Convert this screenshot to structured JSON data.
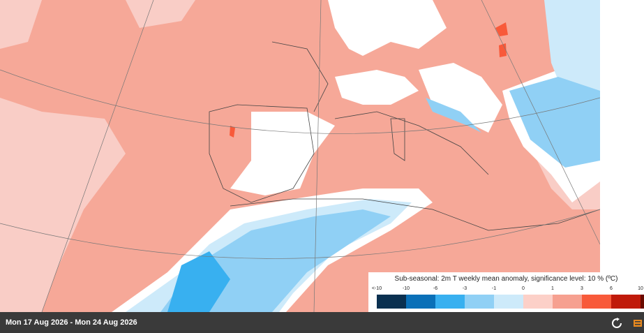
{
  "legend": {
    "title": "Sub-seasonal: 2m T weekly mean anomaly, significance level: 10 % (ºC)",
    "ticks": [
      "<-10",
      "-10",
      "-6",
      "-3",
      "-1",
      "0",
      "1",
      "3",
      "6",
      "10"
    ],
    "colors": [
      "#0a3050",
      "#0a70b8",
      "#38b0f0",
      "#90d0f5",
      "#cdeafa",
      "#fcd0c8",
      "#f6a090",
      "#f85a3a",
      "#c01a0a",
      "#6a0a00"
    ]
  },
  "footer": {
    "date_range": "Mon 17 Aug 2026 - Mon 24 Aug 2026"
  }
}
